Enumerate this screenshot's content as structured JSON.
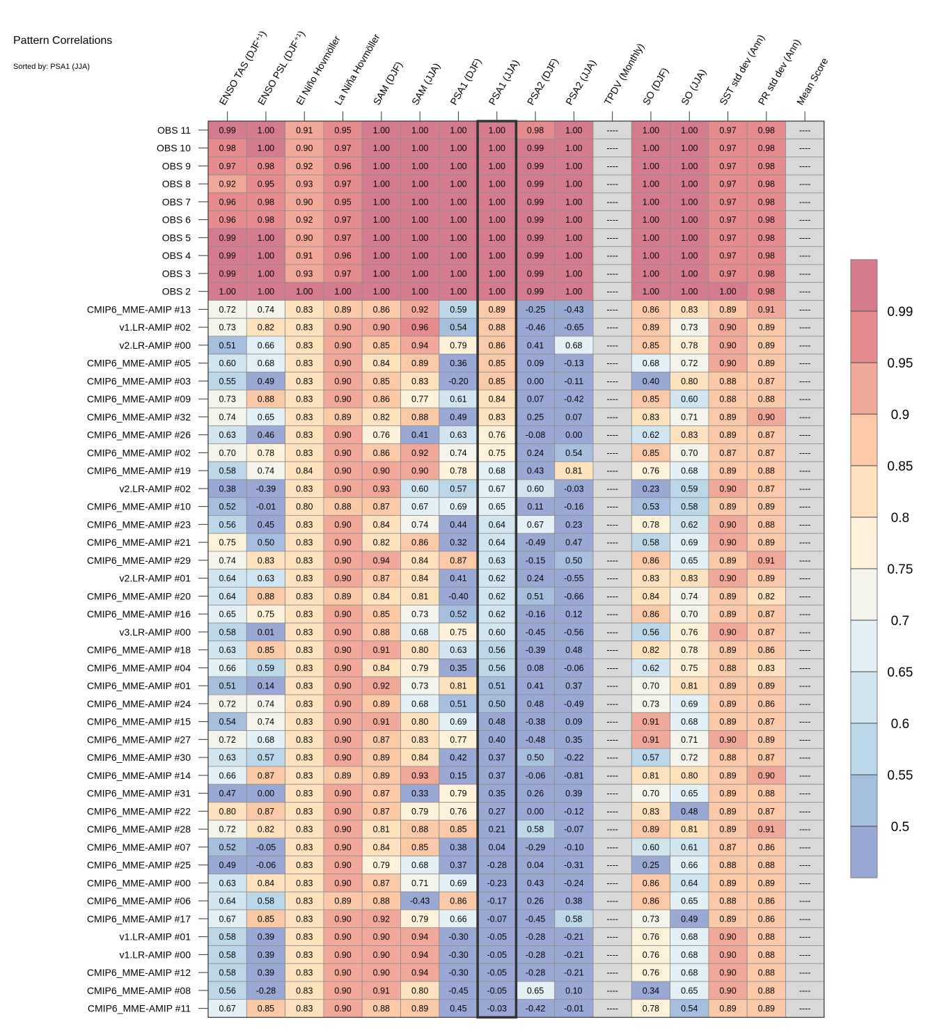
{
  "chart_data": {
    "type": "heatmap",
    "title": "Pattern Correlations",
    "subtitle": "Sorted by: PSA1 (JJA)",
    "highlight_column": "PSA1 (JJA)",
    "columns": [
      "ENSO TAS (DJF⁺¹)",
      "ENSO PSL (DJF⁺¹)",
      "El Niño Hovmöller",
      "La Niña Hovmöller",
      "SAM (DJF)",
      "SAM (JJA)",
      "PSA1 (DJF)",
      "PSA1 (JJA)",
      "PSA2 (DJF)",
      "PSA2 (JJA)",
      "TPDV (Monthly)",
      "SO (DJF)",
      "SO (JJA)",
      "SST std dev (Ann)",
      "PR std dev (Ann)",
      "Mean Score"
    ],
    "missing_label": "----",
    "rows": [
      {
        "label": "OBS 11",
        "values": [
          0.99,
          1.0,
          0.91,
          0.95,
          1.0,
          1.0,
          1.0,
          1.0,
          0.98,
          1.0,
          null,
          1.0,
          1.0,
          0.97,
          0.98,
          null
        ]
      },
      {
        "label": "OBS 10",
        "values": [
          0.98,
          1.0,
          0.9,
          0.97,
          1.0,
          1.0,
          1.0,
          1.0,
          0.99,
          1.0,
          null,
          1.0,
          1.0,
          0.97,
          0.98,
          null
        ]
      },
      {
        "label": "OBS 9",
        "values": [
          0.97,
          0.98,
          0.92,
          0.96,
          1.0,
          1.0,
          1.0,
          1.0,
          0.99,
          1.0,
          null,
          1.0,
          1.0,
          0.97,
          0.98,
          null
        ]
      },
      {
        "label": "OBS 8",
        "values": [
          0.92,
          0.95,
          0.93,
          0.97,
          1.0,
          1.0,
          1.0,
          1.0,
          0.99,
          1.0,
          null,
          1.0,
          1.0,
          0.97,
          0.98,
          null
        ]
      },
      {
        "label": "OBS 7",
        "values": [
          0.96,
          0.98,
          0.9,
          0.95,
          1.0,
          1.0,
          1.0,
          1.0,
          0.99,
          1.0,
          null,
          1.0,
          1.0,
          0.97,
          0.98,
          null
        ]
      },
      {
        "label": "OBS 6",
        "values": [
          0.96,
          0.98,
          0.92,
          0.97,
          1.0,
          1.0,
          1.0,
          1.0,
          0.99,
          1.0,
          null,
          1.0,
          1.0,
          0.97,
          0.98,
          null
        ]
      },
      {
        "label": "OBS 5",
        "values": [
          0.99,
          1.0,
          0.9,
          0.97,
          1.0,
          1.0,
          1.0,
          1.0,
          0.99,
          1.0,
          null,
          1.0,
          1.0,
          0.97,
          0.98,
          null
        ]
      },
      {
        "label": "OBS 4",
        "values": [
          0.99,
          1.0,
          0.91,
          0.96,
          1.0,
          1.0,
          1.0,
          1.0,
          0.99,
          1.0,
          null,
          1.0,
          1.0,
          0.97,
          0.98,
          null
        ]
      },
      {
        "label": "OBS 3",
        "values": [
          0.99,
          1.0,
          0.93,
          0.97,
          1.0,
          1.0,
          1.0,
          1.0,
          0.99,
          1.0,
          null,
          1.0,
          1.0,
          0.97,
          0.98,
          null
        ]
      },
      {
        "label": "OBS 2",
        "values": [
          1.0,
          1.0,
          1.0,
          1.0,
          1.0,
          1.0,
          1.0,
          1.0,
          0.99,
          1.0,
          null,
          1.0,
          1.0,
          1.0,
          0.98,
          null
        ]
      },
      {
        "label": "CMIP6_MME-AMIP  #13",
        "values": [
          0.72,
          0.74,
          0.83,
          0.89,
          0.86,
          0.92,
          0.59,
          0.89,
          -0.25,
          -0.43,
          null,
          0.86,
          0.83,
          0.89,
          0.91,
          null
        ]
      },
      {
        "label": "v1.LR-AMIP  #02",
        "values": [
          0.73,
          0.82,
          0.83,
          0.9,
          0.9,
          0.96,
          0.54,
          0.88,
          -0.46,
          -0.65,
          null,
          0.89,
          0.73,
          0.9,
          0.89,
          null
        ]
      },
      {
        "label": "v2.LR-AMIP  #00",
        "values": [
          0.51,
          0.66,
          0.83,
          0.9,
          0.85,
          0.94,
          0.79,
          0.86,
          0.41,
          0.68,
          null,
          0.85,
          0.78,
          0.9,
          0.89,
          null
        ]
      },
      {
        "label": "CMIP6_MME-AMIP  #05",
        "values": [
          0.6,
          0.68,
          0.83,
          0.9,
          0.84,
          0.89,
          0.36,
          0.85,
          0.09,
          -0.13,
          null,
          0.68,
          0.72,
          0.9,
          0.89,
          null
        ]
      },
      {
        "label": "CMIP6_MME-AMIP  #03",
        "values": [
          0.55,
          0.49,
          0.83,
          0.9,
          0.85,
          0.83,
          -0.2,
          0.85,
          -0.0,
          -0.11,
          null,
          0.4,
          0.8,
          0.88,
          0.87,
          null
        ]
      },
      {
        "label": "CMIP6_MME-AMIP  #09",
        "values": [
          0.73,
          0.88,
          0.83,
          0.9,
          0.86,
          0.77,
          0.61,
          0.84,
          0.07,
          -0.42,
          null,
          0.85,
          0.6,
          0.88,
          0.88,
          null
        ]
      },
      {
        "label": "CMIP6_MME-AMIP  #32",
        "values": [
          0.74,
          0.65,
          0.83,
          0.89,
          0.82,
          0.88,
          0.49,
          0.83,
          0.25,
          0.07,
          null,
          0.83,
          0.71,
          0.89,
          0.9,
          null
        ]
      },
      {
        "label": "CMIP6_MME-AMIP  #26",
        "values": [
          0.63,
          0.46,
          0.83,
          0.9,
          0.76,
          0.41,
          0.63,
          0.76,
          -0.08,
          -0.0,
          null,
          0.62,
          0.83,
          0.89,
          0.87,
          null
        ]
      },
      {
        "label": "CMIP6_MME-AMIP  #02",
        "values": [
          0.7,
          0.78,
          0.83,
          0.9,
          0.86,
          0.92,
          0.74,
          0.75,
          0.24,
          0.54,
          null,
          0.85,
          0.7,
          0.87,
          0.87,
          null
        ]
      },
      {
        "label": "CMIP6_MME-AMIP  #19",
        "values": [
          0.58,
          0.74,
          0.84,
          0.9,
          0.9,
          0.9,
          0.78,
          0.68,
          0.43,
          0.81,
          null,
          0.76,
          0.68,
          0.89,
          0.88,
          null
        ]
      },
      {
        "label": "v2.LR-AMIP  #02",
        "values": [
          0.38,
          -0.39,
          0.83,
          0.9,
          0.93,
          0.6,
          0.57,
          0.67,
          0.6,
          -0.03,
          null,
          0.23,
          0.59,
          0.9,
          0.87,
          null
        ]
      },
      {
        "label": "CMIP6_MME-AMIP  #10",
        "values": [
          0.52,
          -0.01,
          0.8,
          0.88,
          0.87,
          0.67,
          0.69,
          0.65,
          0.11,
          -0.16,
          null,
          0.53,
          0.58,
          0.89,
          0.89,
          null
        ]
      },
      {
        "label": "CMIP6_MME-AMIP  #23",
        "values": [
          0.56,
          0.45,
          0.83,
          0.9,
          0.84,
          0.74,
          0.44,
          0.64,
          0.67,
          0.23,
          null,
          0.78,
          0.62,
          0.9,
          0.88,
          null
        ]
      },
      {
        "label": "CMIP6_MME-AMIP  #21",
        "values": [
          0.75,
          0.5,
          0.83,
          0.9,
          0.82,
          0.86,
          0.32,
          0.64,
          -0.49,
          0.47,
          null,
          0.58,
          0.69,
          0.9,
          0.89,
          null
        ]
      },
      {
        "label": "CMIP6_MME-AMIP  #29",
        "values": [
          0.74,
          0.83,
          0.83,
          0.9,
          0.94,
          0.84,
          0.87,
          0.63,
          -0.15,
          0.5,
          null,
          0.86,
          0.65,
          0.89,
          0.91,
          null
        ]
      },
      {
        "label": "v2.LR-AMIP  #01",
        "values": [
          0.64,
          0.63,
          0.83,
          0.9,
          0.87,
          0.84,
          0.41,
          0.62,
          0.24,
          -0.55,
          null,
          0.83,
          0.83,
          0.9,
          0.89,
          null
        ]
      },
      {
        "label": "CMIP6_MME-AMIP  #20",
        "values": [
          0.64,
          0.88,
          0.83,
          0.89,
          0.84,
          0.81,
          -0.4,
          0.62,
          0.51,
          -0.66,
          null,
          0.84,
          0.74,
          0.89,
          0.82,
          null
        ]
      },
      {
        "label": "CMIP6_MME-AMIP  #16",
        "values": [
          0.65,
          0.75,
          0.83,
          0.9,
          0.85,
          0.73,
          0.52,
          0.62,
          -0.16,
          0.12,
          null,
          0.86,
          0.7,
          0.89,
          0.87,
          null
        ]
      },
      {
        "label": "v3.LR-AMIP  #00",
        "values": [
          0.58,
          0.01,
          0.83,
          0.9,
          0.88,
          0.68,
          0.75,
          0.6,
          -0.45,
          -0.56,
          null,
          0.56,
          0.76,
          0.9,
          0.87,
          null
        ]
      },
      {
        "label": "CMIP6_MME-AMIP  #18",
        "values": [
          0.63,
          0.85,
          0.83,
          0.9,
          0.91,
          0.8,
          0.63,
          0.56,
          -0.39,
          0.48,
          null,
          0.82,
          0.78,
          0.89,
          0.86,
          null
        ]
      },
      {
        "label": "CMIP6_MME-AMIP  #04",
        "values": [
          0.66,
          0.59,
          0.83,
          0.9,
          0.84,
          0.79,
          0.35,
          0.56,
          0.08,
          -0.06,
          null,
          0.62,
          0.75,
          0.88,
          0.83,
          null
        ]
      },
      {
        "label": "CMIP6_MME-AMIP  #01",
        "values": [
          0.51,
          0.14,
          0.83,
          0.9,
          0.92,
          0.73,
          0.81,
          0.51,
          0.41,
          0.37,
          null,
          0.7,
          0.81,
          0.89,
          0.89,
          null
        ]
      },
      {
        "label": "CMIP6_MME-AMIP  #24",
        "values": [
          0.72,
          0.74,
          0.83,
          0.9,
          0.89,
          0.68,
          0.51,
          0.5,
          0.48,
          -0.49,
          null,
          0.73,
          0.69,
          0.89,
          0.86,
          null
        ]
      },
      {
        "label": "CMIP6_MME-AMIP  #15",
        "values": [
          0.54,
          0.74,
          0.83,
          0.9,
          0.91,
          0.8,
          0.69,
          0.48,
          -0.38,
          0.09,
          null,
          0.91,
          0.68,
          0.89,
          0.87,
          null
        ]
      },
      {
        "label": "CMIP6_MME-AMIP  #27",
        "values": [
          0.72,
          0.68,
          0.83,
          0.9,
          0.87,
          0.83,
          0.77,
          0.4,
          -0.48,
          0.35,
          null,
          0.91,
          0.71,
          0.9,
          0.89,
          null
        ]
      },
      {
        "label": "CMIP6_MME-AMIP  #30",
        "values": [
          0.63,
          0.57,
          0.83,
          0.9,
          0.89,
          0.84,
          0.42,
          0.37,
          0.5,
          -0.22,
          null,
          0.57,
          0.72,
          0.88,
          0.87,
          null
        ]
      },
      {
        "label": "CMIP6_MME-AMIP  #14",
        "values": [
          0.66,
          0.87,
          0.83,
          0.89,
          0.89,
          0.93,
          0.15,
          0.37,
          -0.06,
          -0.81,
          null,
          0.81,
          0.8,
          0.89,
          0.9,
          null
        ]
      },
      {
        "label": "CMIP6_MME-AMIP  #31",
        "values": [
          0.47,
          0.0,
          0.83,
          0.9,
          0.87,
          0.33,
          0.79,
          0.35,
          0.26,
          0.39,
          null,
          0.7,
          0.65,
          0.89,
          0.88,
          null
        ]
      },
      {
        "label": "CMIP6_MME-AMIP  #22",
        "values": [
          0.8,
          0.87,
          0.83,
          0.9,
          0.87,
          0.79,
          0.76,
          0.27,
          -0.0,
          -0.12,
          null,
          0.83,
          0.48,
          0.89,
          0.87,
          null
        ]
      },
      {
        "label": "CMIP6_MME-AMIP  #28",
        "values": [
          0.72,
          0.82,
          0.83,
          0.9,
          0.81,
          0.88,
          0.85,
          0.21,
          0.58,
          -0.07,
          null,
          0.89,
          0.81,
          0.89,
          0.91,
          null
        ]
      },
      {
        "label": "CMIP6_MME-AMIP  #07",
        "values": [
          0.52,
          -0.05,
          0.83,
          0.9,
          0.84,
          0.85,
          0.38,
          0.04,
          -0.29,
          -0.1,
          null,
          0.6,
          0.61,
          0.87,
          0.86,
          null
        ]
      },
      {
        "label": "CMIP6_MME-AMIP  #25",
        "values": [
          0.49,
          -0.06,
          0.83,
          0.9,
          0.79,
          0.68,
          0.37,
          -0.28,
          0.04,
          -0.31,
          null,
          0.25,
          0.66,
          0.88,
          0.88,
          null
        ]
      },
      {
        "label": "CMIP6_MME-AMIP  #00",
        "values": [
          0.63,
          0.84,
          0.83,
          0.9,
          0.87,
          0.71,
          0.69,
          -0.23,
          0.43,
          -0.24,
          null,
          0.86,
          0.64,
          0.89,
          0.89,
          null
        ]
      },
      {
        "label": "CMIP6_MME-AMIP  #06",
        "values": [
          0.64,
          0.58,
          0.83,
          0.89,
          0.88,
          -0.43,
          0.86,
          -0.17,
          0.26,
          0.38,
          null,
          0.86,
          0.65,
          0.88,
          0.86,
          null
        ]
      },
      {
        "label": "CMIP6_MME-AMIP  #17",
        "values": [
          0.67,
          0.85,
          0.83,
          0.9,
          0.92,
          0.79,
          0.66,
          -0.07,
          -0.45,
          0.58,
          null,
          0.73,
          0.49,
          0.89,
          0.86,
          null
        ]
      },
      {
        "label": "v1.LR-AMIP  #01",
        "values": [
          0.58,
          0.39,
          0.83,
          0.9,
          0.9,
          0.94,
          -0.3,
          -0.05,
          -0.28,
          -0.21,
          null,
          0.76,
          0.68,
          0.9,
          0.88,
          null
        ]
      },
      {
        "label": "v1.LR-AMIP  #00",
        "values": [
          0.58,
          0.39,
          0.83,
          0.9,
          0.9,
          0.94,
          -0.3,
          -0.05,
          -0.28,
          -0.21,
          null,
          0.76,
          0.68,
          0.9,
          0.88,
          null
        ]
      },
      {
        "label": "CMIP6_MME-AMIP  #12",
        "values": [
          0.58,
          0.39,
          0.83,
          0.9,
          0.9,
          0.94,
          -0.3,
          -0.05,
          -0.28,
          -0.21,
          null,
          0.76,
          0.68,
          0.9,
          0.88,
          null
        ]
      },
      {
        "label": "CMIP6_MME-AMIP  #08",
        "values": [
          0.56,
          -0.28,
          0.83,
          0.9,
          0.91,
          0.8,
          -0.45,
          -0.05,
          0.65,
          0.1,
          null,
          0.34,
          0.65,
          0.9,
          0.88,
          null
        ]
      },
      {
        "label": "CMIP6_MME-AMIP  #11",
        "values": [
          0.67,
          0.85,
          0.83,
          0.9,
          0.88,
          0.89,
          0.45,
          -0.03,
          -0.42,
          -0.01,
          null,
          0.78,
          0.54,
          0.89,
          0.89,
          null
        ]
      }
    ],
    "colorbar": {
      "tick_labels": [
        "0.99",
        "0.95",
        "0.9",
        "0.85",
        "0.8",
        "0.75",
        "0.7",
        "0.65",
        "0.6",
        "0.55",
        "0.5"
      ],
      "bins": [
        {
          "min": 0.99,
          "max": 1.01,
          "color": "#d57b8e"
        },
        {
          "min": 0.95,
          "max": 0.99,
          "color": "#e68c8e"
        },
        {
          "min": 0.9,
          "max": 0.95,
          "color": "#f0a898"
        },
        {
          "min": 0.85,
          "max": 0.9,
          "color": "#f9c9a8"
        },
        {
          "min": 0.8,
          "max": 0.85,
          "color": "#fde2bd"
        },
        {
          "min": 0.75,
          "max": 0.8,
          "color": "#fdf1d9"
        },
        {
          "min": 0.7,
          "max": 0.75,
          "color": "#f4f4ec"
        },
        {
          "min": 0.65,
          "max": 0.7,
          "color": "#e3f0f5"
        },
        {
          "min": 0.6,
          "max": 0.65,
          "color": "#d0e5ef"
        },
        {
          "min": 0.55,
          "max": 0.6,
          "color": "#bcd7e8"
        },
        {
          "min": 0.5,
          "max": 0.55,
          "color": "#a6bfde"
        },
        {
          "min": -1.0,
          "max": 0.5,
          "color": "#9aa9d4"
        }
      ],
      "missing_color": "#d9d9d9"
    }
  }
}
